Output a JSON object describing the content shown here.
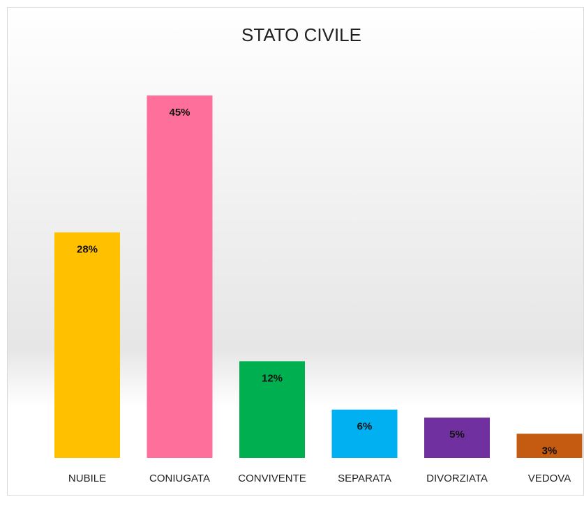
{
  "chart_data": {
    "type": "bar",
    "title": "STATO CIVILE",
    "categories": [
      "NUBILE",
      "CONIUGATA",
      "CONVIVENTE",
      "SEPARATA",
      "DIVORZIATA",
      "VEDOVA"
    ],
    "values": [
      28,
      45,
      12,
      6,
      5,
      3
    ],
    "value_labels": [
      "28%",
      "45%",
      "12%",
      "6%",
      "5%",
      "3%"
    ],
    "colors": [
      "#ffc000",
      "#ff6f9b",
      "#00b050",
      "#00b0f0",
      "#7030a0",
      "#c55a11"
    ]
  }
}
